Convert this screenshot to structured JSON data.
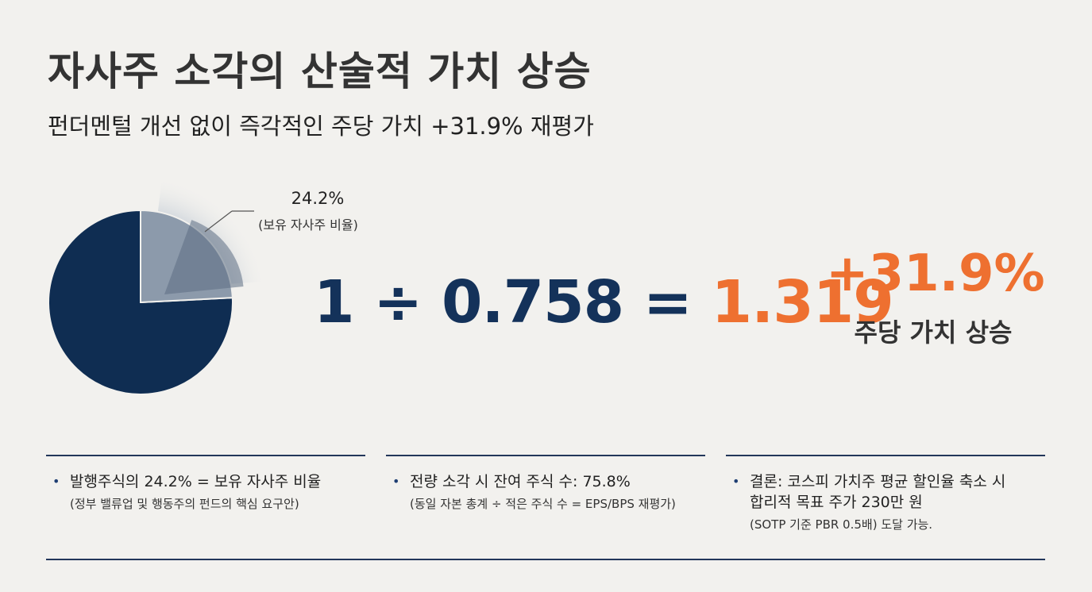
{
  "header": {
    "title": "자사주 소각의 산술적 가치 상승",
    "subtitle": "펀더멘털 개선 없이 즉각적인 주당 가치 +31.9% 재평가"
  },
  "chart_data": {
    "type": "pie",
    "slices": [
      {
        "label": "24.2%",
        "value": 24.2,
        "color": "#8c9aab"
      },
      {
        "label": "",
        "value": 75.8,
        "color": "#0f2d52"
      }
    ],
    "callout": {
      "value_label": "24.2%",
      "description": "(보유 자사주 비율)"
    }
  },
  "equation": {
    "left": "1 ÷ 0.758 =",
    "result": "1.319"
  },
  "highlight": {
    "value": "+31.9%",
    "label": "주당 가치 상승"
  },
  "colors": {
    "navy": "#14325a",
    "orange": "#ee7030",
    "background": "#f2f1ee"
  },
  "notes": [
    {
      "main": "발행주식의 24.2% = 보유 자사주 비율",
      "sub": "(정부 밸류업 및 행동주의 펀드의 핵심 요구안)"
    },
    {
      "main": "전량 소각 시 잔여 주식 수: 75.8%",
      "sub": "(동일 자본 총계 ÷ 적은 주식 수 = EPS/BPS 재평가)"
    },
    {
      "main": "결론: 코스피 가치주 평균 할인율 축소 시",
      "main2": "합리적 목표 주가 230만 원",
      "sub": "(SOTP 기준 PBR 0.5배) 도달 가능."
    }
  ]
}
